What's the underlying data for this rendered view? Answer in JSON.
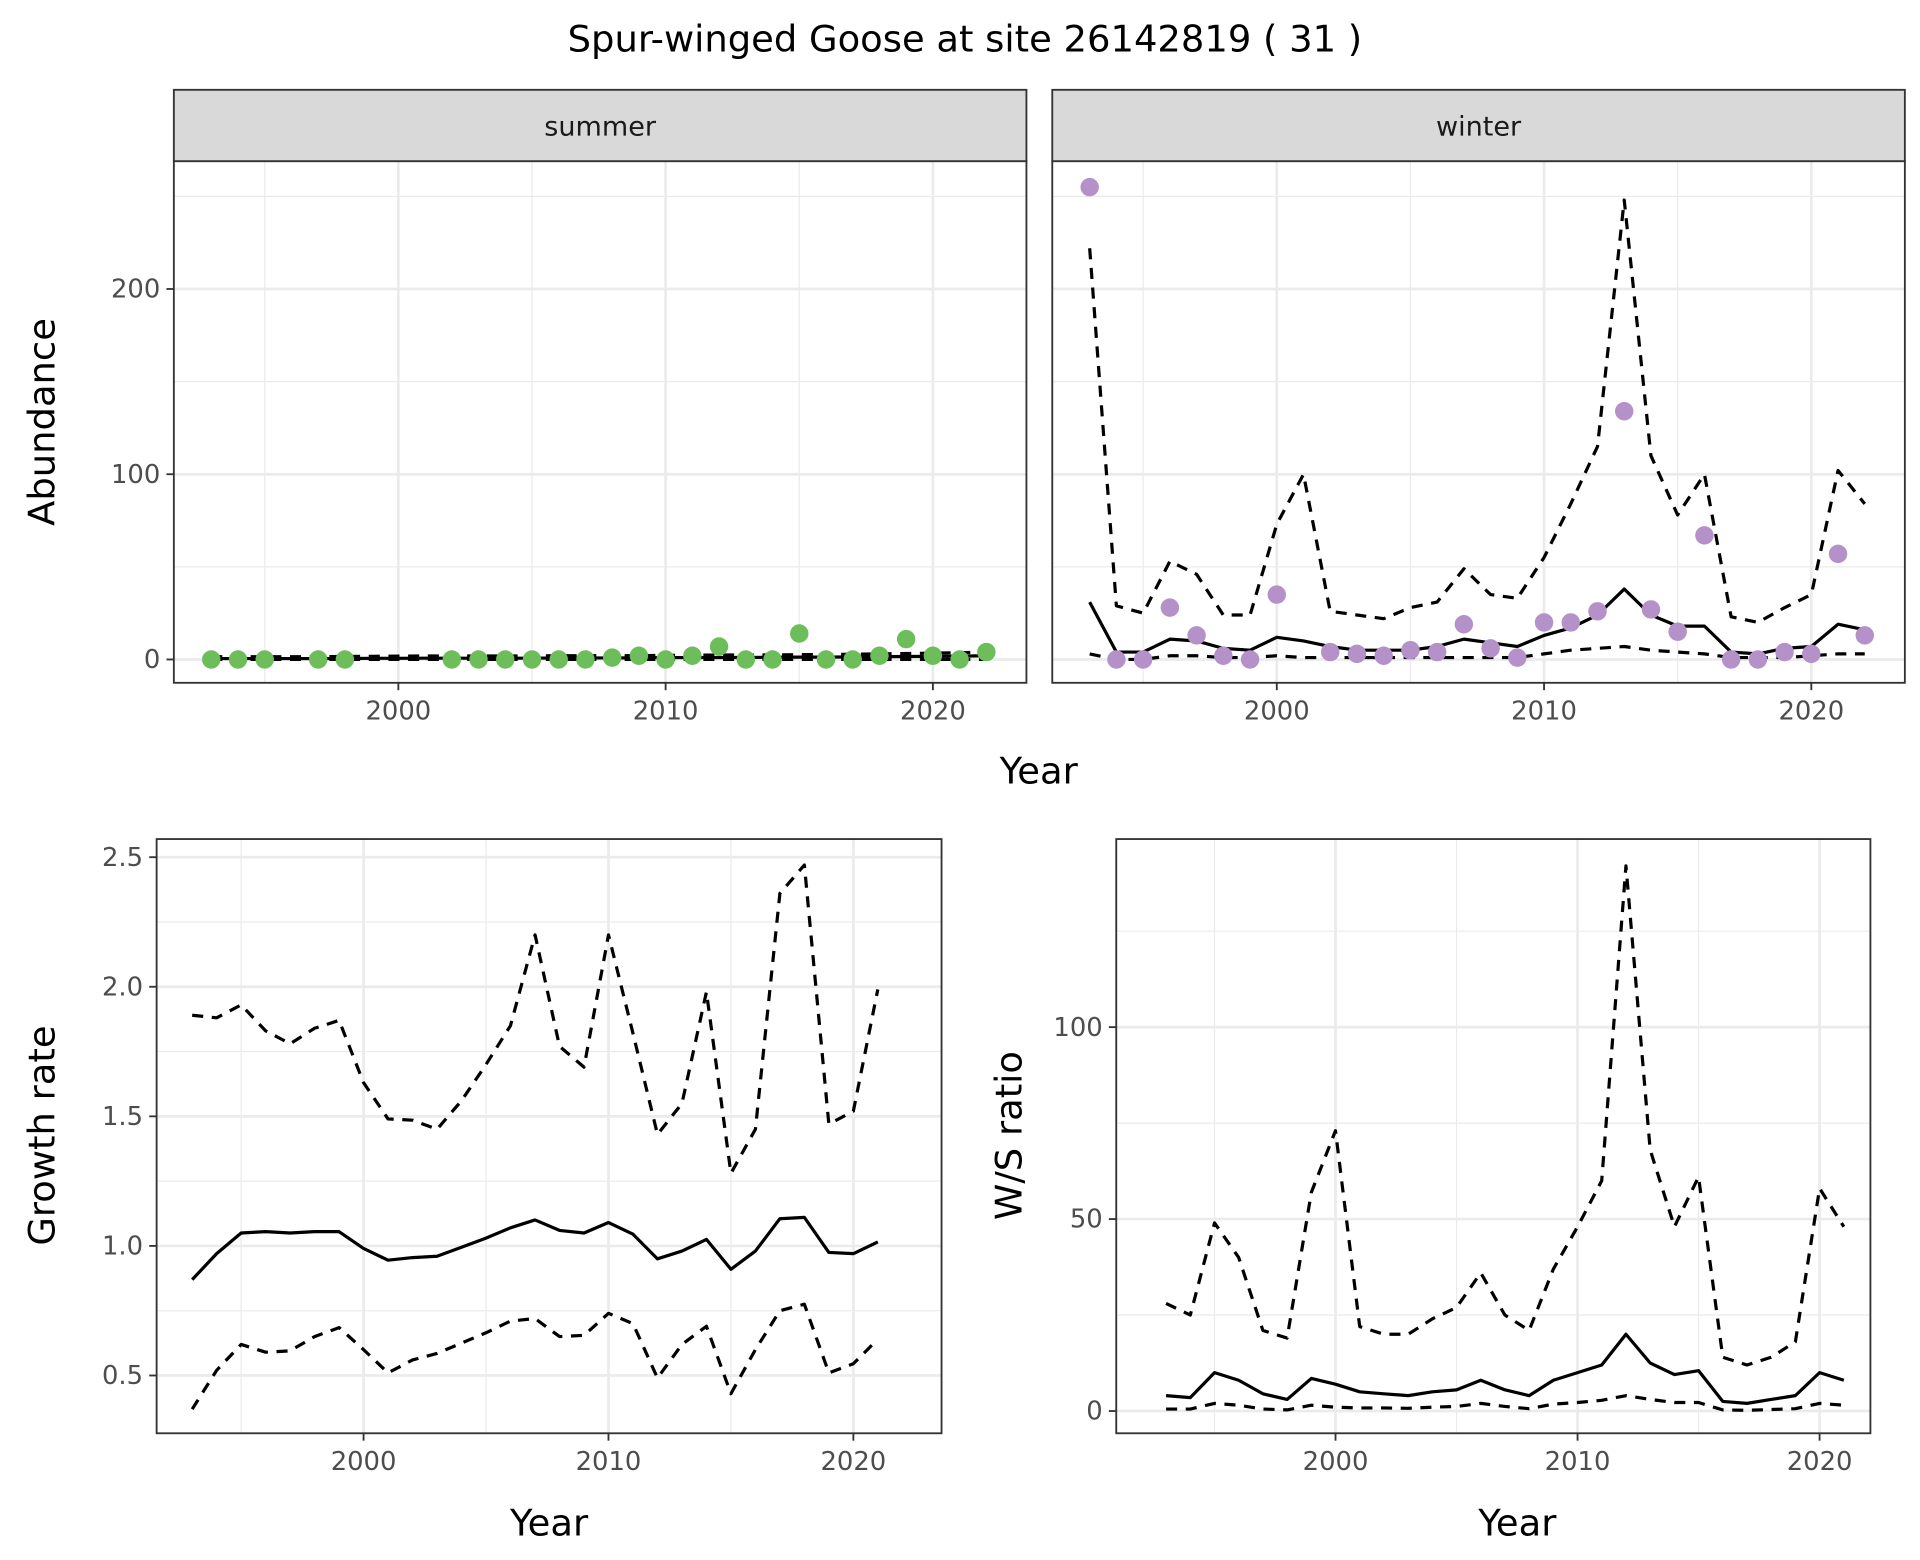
{
  "title": "Spur-winged Goose at site 26142819 ( 31 )",
  "chart_data": [
    {
      "type": "scatter+line",
      "xlabel": "Year",
      "ylabel": "Abundance",
      "xlim": [
        1991.6,
        2023.5
      ],
      "ylim": [
        -12.6,
        269
      ],
      "xticks": [
        2000,
        2010,
        2020
      ],
      "xtick_labels": [
        "2000",
        "2010",
        "2020"
      ],
      "yticks": [
        0,
        100,
        200
      ],
      "ytick_labels": [
        "0",
        "100",
        "200"
      ],
      "yminor": [
        50,
        150,
        250
      ],
      "xminor": [
        1995,
        2005,
        2015
      ],
      "grid": true,
      "facets": [
        {
          "label": "summer",
          "point_color": "#6DBE5B",
          "points": {
            "x": [
              1993,
              1994,
              1995,
              1997,
              1998,
              2002,
              2003,
              2004,
              2005,
              2006,
              2007,
              2008,
              2009,
              2010,
              2011,
              2012,
              2013,
              2014,
              2015,
              2016,
              2017,
              2018,
              2019,
              2020,
              2021,
              2022
            ],
            "y": [
              0,
              0,
              0,
              0,
              0,
              0,
              0,
              0,
              0,
              0,
              0,
              1,
              2,
              0,
              2,
              7,
              0,
              0,
              14,
              0,
              0,
              2,
              11,
              2,
              0,
              4
            ]
          },
          "lines": {
            "x": [
              1993,
              1994,
              1995,
              1996,
              1997,
              1998,
              1999,
              2000,
              2001,
              2002,
              2003,
              2004,
              2005,
              2006,
              2007,
              2008,
              2009,
              2010,
              2011,
              2012,
              2013,
              2014,
              2015,
              2016,
              2017,
              2018,
              2019,
              2020,
              2021,
              2022
            ],
            "mean": [
              0.5,
              0.5,
              0.5,
              0.5,
              0.5,
              0.5,
              0.6,
              0.6,
              0.7,
              0.7,
              0.7,
              0.7,
              0.7,
              0.8,
              0.8,
              0.8,
              0.9,
              1,
              1,
              1.1,
              1.1,
              1.2,
              1.3,
              1.3,
              1.4,
              1.5,
              1.6,
              1.7,
              1.8,
              2
            ],
            "upper": [
              1.5,
              1.5,
              1.5,
              1.5,
              1.5,
              1.6,
              1.7,
              1.8,
              1.9,
              1.9,
              1.9,
              1.9,
              1.9,
              2,
              2,
              2,
              2.1,
              2.2,
              2.3,
              2.4,
              2.4,
              2.5,
              2.6,
              2.7,
              2.8,
              3,
              3.2,
              3.4,
              3.7,
              4
            ],
            "lower": [
              0,
              0,
              0,
              0,
              0,
              0,
              0,
              0,
              0,
              0,
              0,
              0,
              0,
              0,
              0,
              0,
              0,
              0,
              0,
              0,
              0,
              0,
              0,
              0,
              0,
              0,
              0,
              0,
              0,
              0
            ]
          }
        },
        {
          "label": "winter",
          "point_color": "#B491C8",
          "points": {
            "x": [
              1993,
              1994,
              1995,
              1996,
              1997,
              1998,
              1999,
              2000,
              2002,
              2003,
              2004,
              2005,
              2006,
              2007,
              2008,
              2009,
              2010,
              2011,
              2012,
              2013,
              2014,
              2015,
              2016,
              2017,
              2018,
              2019,
              2020,
              2021,
              2022
            ],
            "y": [
              255,
              0,
              0,
              28,
              13,
              2,
              0,
              35,
              4,
              3,
              2,
              5,
              4,
              19,
              6,
              1,
              20,
              20,
              26,
              134,
              27,
              15,
              67,
              0,
              0,
              4,
              3,
              57,
              13
            ]
          },
          "lines": {
            "x": [
              1993,
              1994,
              1995,
              1996,
              1997,
              1998,
              1999,
              2000,
              2001,
              2002,
              2003,
              2004,
              2005,
              2006,
              2007,
              2008,
              2009,
              2010,
              2011,
              2012,
              2013,
              2014,
              2015,
              2016,
              2017,
              2018,
              2019,
              2020,
              2021,
              2022
            ],
            "mean": [
              31,
              4,
              4,
              11,
              10,
              6,
              5,
              12,
              10,
              7,
              5,
              5,
              5,
              7,
              11,
              9,
              7,
              13,
              17,
              24,
              38,
              24,
              18,
              18,
              4,
              3,
              6,
              7,
              19,
              16
            ],
            "upper": [
              222,
              29,
              25,
              53,
              46,
              24,
              24,
              73,
              100,
              26,
              24,
              22,
              28,
              31,
              49,
              35,
              33,
              55,
              84,
              115,
              248,
              110,
              78,
              100,
              23,
              20,
              28,
              35,
              102,
              84
            ],
            "lower": [
              3,
              0,
              0,
              2,
              2,
              1,
              1,
              2,
              1,
              1,
              1,
              1,
              1,
              1,
              1,
              1,
              1,
              3,
              5,
              6,
              7,
              5,
              4,
              3,
              1,
              1,
              1,
              2,
              3,
              3
            ]
          }
        }
      ]
    },
    {
      "type": "line",
      "xlabel": "Year",
      "ylabel": "Growth rate",
      "xlim": [
        1991.55,
        2023.6
      ],
      "ylim": [
        0.277,
        2.57
      ],
      "xticks": [
        2000,
        2010,
        2020
      ],
      "xtick_labels": [
        "2000",
        "2010",
        "2020"
      ],
      "yticks": [
        0.5,
        1.0,
        1.5,
        2.0,
        2.5
      ],
      "ytick_labels": [
        "0.5",
        "1.0",
        "1.5",
        "2.0",
        "2.5"
      ],
      "yminor": [
        0.75,
        1.25,
        1.75,
        2.25
      ],
      "xminor": [
        1995,
        2005,
        2015
      ],
      "grid": true,
      "lines": {
        "x": [
          1993,
          1994,
          1995,
          1996,
          1997,
          1998,
          1999,
          2000,
          2001,
          2002,
          2003,
          2004,
          2005,
          2006,
          2007,
          2008,
          2009,
          2010,
          2011,
          2012,
          2013,
          2014,
          2015,
          2016,
          2017,
          2018,
          2019,
          2020,
          2021
        ],
        "mean": [
          0.87,
          0.97,
          1.05,
          1.055,
          1.05,
          1.055,
          1.055,
          0.99,
          0.945,
          0.955,
          0.96,
          0.995,
          1.03,
          1.07,
          1.1,
          1.06,
          1.05,
          1.09,
          1.045,
          0.95,
          0.98,
          1.025,
          0.91,
          0.98,
          1.105,
          1.11,
          0.975,
          0.97,
          1.015
        ],
        "upper": [
          1.89,
          1.88,
          1.93,
          1.83,
          1.78,
          1.84,
          1.87,
          1.63,
          1.49,
          1.485,
          1.45,
          1.56,
          1.7,
          1.85,
          2.2,
          1.77,
          1.69,
          2.2,
          1.82,
          1.43,
          1.55,
          1.98,
          1.28,
          1.45,
          2.36,
          2.47,
          1.47,
          1.52,
          1.99
        ],
        "lower": [
          0.37,
          0.52,
          0.62,
          0.59,
          0.595,
          0.65,
          0.685,
          0.6,
          0.51,
          0.56,
          0.585,
          0.625,
          0.665,
          0.71,
          0.72,
          0.65,
          0.655,
          0.74,
          0.7,
          0.49,
          0.62,
          0.69,
          0.43,
          0.6,
          0.75,
          0.775,
          0.51,
          0.545,
          0.64
        ]
      }
    },
    {
      "type": "line",
      "xlabel": "Year",
      "ylabel": "W/S ratio",
      "xlim": [
        1990.94,
        2022.1
      ],
      "ylim": [
        -5.8,
        149
      ],
      "xticks": [
        2000,
        2010,
        2020
      ],
      "xtick_labels": [
        "2000",
        "2010",
        "2020"
      ],
      "yticks": [
        0,
        50,
        100
      ],
      "ytick_labels": [
        "0",
        "50",
        "100"
      ],
      "yminor": [
        25,
        75,
        125
      ],
      "xminor": [
        1995,
        2005,
        2015
      ],
      "grid": true,
      "lines": {
        "x": [
          1993,
          1994,
          1995,
          1996,
          1997,
          1998,
          1999,
          2000,
          2001,
          2002,
          2003,
          2004,
          2005,
          2006,
          2007,
          2008,
          2009,
          2010,
          2011,
          2012,
          2013,
          2014,
          2015,
          2016,
          2017,
          2018,
          2019,
          2020,
          2021
        ],
        "mean": [
          4,
          3.5,
          10,
          8,
          4.5,
          3,
          8.5,
          7,
          5,
          4.5,
          4,
          5,
          5.5,
          8,
          5.5,
          4,
          8,
          10,
          12,
          20,
          12.5,
          9.5,
          10.5,
          2.5,
          2,
          3,
          4,
          10,
          8
        ],
        "upper": [
          28,
          25,
          49,
          40,
          21,
          19,
          57,
          73,
          22,
          20,
          20,
          24,
          27,
          36,
          25,
          21,
          37,
          48,
          60,
          142,
          68,
          48,
          61,
          14,
          12,
          14,
          18,
          58,
          48
        ],
        "lower": [
          0.5,
          0.5,
          2,
          1.5,
          0.5,
          0.3,
          1.5,
          1,
          0.8,
          0.8,
          0.7,
          1,
          1.2,
          2,
          1.2,
          0.6,
          1.8,
          2.2,
          2.8,
          4,
          3,
          2.2,
          2.2,
          0.3,
          0.2,
          0.4,
          0.6,
          2,
          1.5
        ]
      }
    }
  ]
}
